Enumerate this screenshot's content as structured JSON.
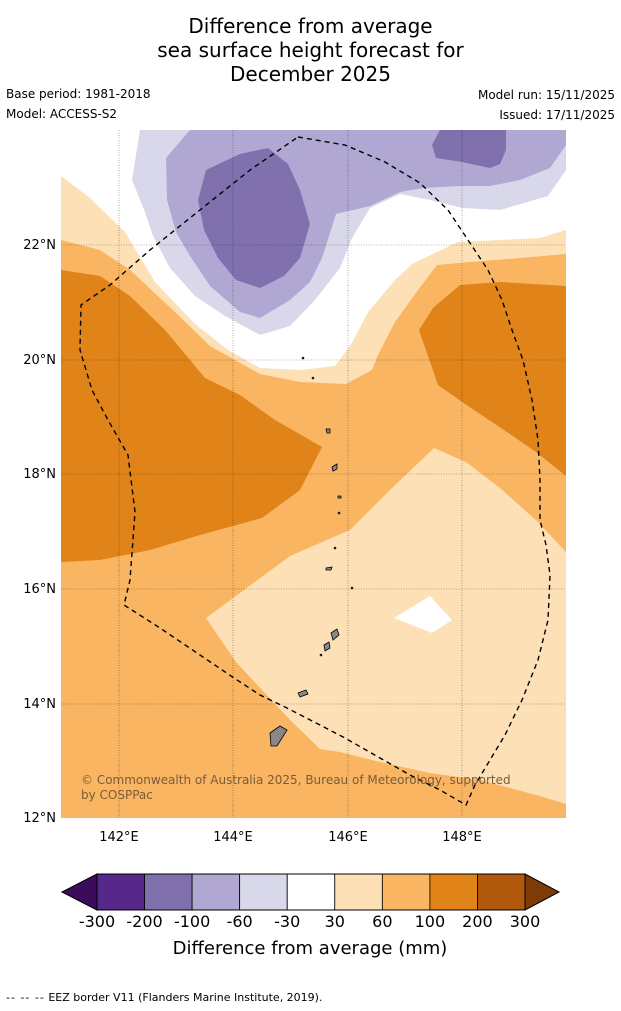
{
  "title": {
    "line1": "Difference from average",
    "line2": "sea surface height forecast for",
    "line3": "December 2025"
  },
  "meta": {
    "base_period": "Base period: 1981-2018",
    "model": "Model: ACCESS-S2",
    "model_run": "Model run: 15/11/2025",
    "issued": "Issued: 17/11/2025"
  },
  "map": {
    "lon_range": [
      141,
      149.8
    ],
    "lat_range": [
      12,
      24
    ],
    "x_ticks": [
      {
        "value": 142,
        "label": "142°E"
      },
      {
        "value": 144,
        "label": "144°E"
      },
      {
        "value": 146,
        "label": "146°E"
      },
      {
        "value": 148,
        "label": "148°E"
      }
    ],
    "y_ticks": [
      {
        "value": 12,
        "label": "12°N"
      },
      {
        "value": 14,
        "label": "14°N"
      },
      {
        "value": 16,
        "label": "16°N"
      },
      {
        "value": 18,
        "label": "18°N"
      },
      {
        "value": 20,
        "label": "20°N"
      },
      {
        "value": 22,
        "label": "22°N"
      }
    ],
    "credit_line1": "© Commonwealth of Australia 2025, Bureau of Meteorology, supported",
    "credit_line2": "by COSPPac"
  },
  "legend": {
    "ticks": [
      "-300",
      "-200",
      "-100",
      "-60",
      "-30",
      "30",
      "60",
      "100",
      "200",
      "300"
    ],
    "colors": [
      "#55288a",
      "#8070ae",
      "#b0a8d2",
      "#d8d8ea",
      "#ffffff",
      "#fde0b6",
      "#f9b562",
      "#e08318",
      "#b0590c"
    ],
    "low_extend_color": "#3a0c5c",
    "high_extend_color": "#7e3b06",
    "label": "Difference from average (mm)"
  },
  "footer": {
    "dash": "-- -- --",
    "text": "EEZ border V11 (Flanders Marine Institute, 2019)."
  }
}
